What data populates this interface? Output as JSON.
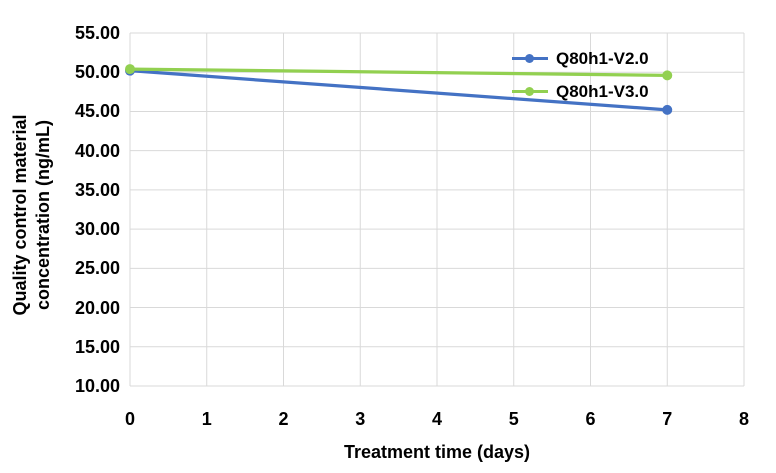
{
  "chart_data": {
    "type": "line",
    "title": "",
    "xlabel": "Treatment time (days)",
    "ylabel": "Quality control material concentration (ng/mL)",
    "x": [
      0,
      7
    ],
    "series": [
      {
        "name": "Q80h1-V2.0",
        "color": "#4472C4",
        "values": [
          50.2,
          45.2
        ]
      },
      {
        "name": "Q80h1-V3.0",
        "color": "#92D050",
        "values": [
          50.4,
          49.6
        ]
      }
    ],
    "xlim": [
      0,
      8
    ],
    "ylim": [
      10,
      55
    ],
    "xticks": [
      0,
      1,
      2,
      3,
      4,
      5,
      6,
      7,
      8
    ],
    "xtick_labels": [
      "0",
      "1",
      "2",
      "3",
      "4",
      "5",
      "6",
      "7",
      "8"
    ],
    "yticks": [
      10,
      15,
      20,
      25,
      30,
      35,
      40,
      45,
      50,
      55
    ],
    "ytick_labels": [
      "10.00",
      "15.00",
      "20.00",
      "25.00",
      "30.00",
      "35.00",
      "40.00",
      "45.00",
      "50.00",
      "55.00"
    ],
    "grid": true,
    "legend_position": "inside-top-right",
    "gridline_color": "#D9D9D9",
    "text_color": "#000000",
    "background": "#FFFFFF",
    "marker": "circle",
    "line_width": 3.25,
    "marker_radius": 5
  }
}
